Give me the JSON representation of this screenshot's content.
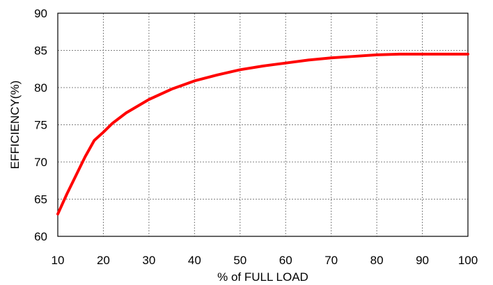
{
  "chart_data": {
    "type": "line",
    "title": "",
    "xlabel": "% of FULL LOAD",
    "ylabel": "EFFICIENCY(%)",
    "xlim": [
      10,
      100
    ],
    "ylim": [
      60,
      90
    ],
    "xticks": [
      10,
      20,
      30,
      40,
      50,
      60,
      70,
      80,
      90,
      100
    ],
    "yticks": [
      60,
      65,
      70,
      75,
      80,
      85,
      90
    ],
    "grid": true,
    "legend": "none",
    "series": [
      {
        "color": "#ff0000",
        "x": [
          10,
          12,
          14,
          16,
          18,
          20,
          22,
          25,
          30,
          35,
          40,
          45,
          50,
          55,
          60,
          65,
          70,
          75,
          80,
          85,
          90,
          95,
          100
        ],
        "y": [
          63.0,
          65.7,
          68.2,
          70.7,
          72.9,
          74.0,
          75.2,
          76.6,
          78.4,
          79.8,
          80.9,
          81.7,
          82.4,
          82.9,
          83.3,
          83.7,
          84.0,
          84.2,
          84.4,
          84.5,
          84.5,
          84.5,
          84.5
        ]
      }
    ]
  }
}
